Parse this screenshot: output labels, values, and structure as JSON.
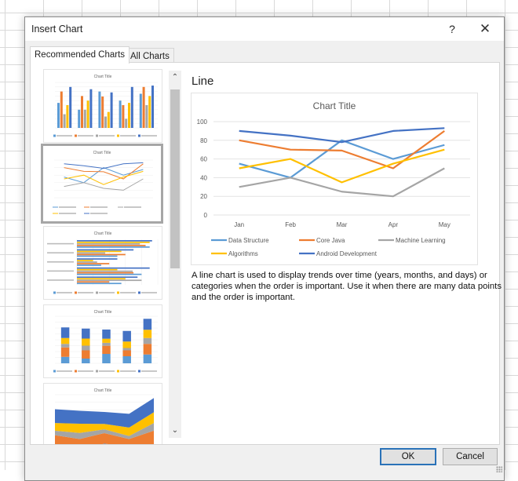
{
  "dialog": {
    "title": "Insert Chart",
    "help_label": "?",
    "close_label": "✕",
    "tabs": [
      {
        "label": "Recommended Charts",
        "active": true
      },
      {
        "label": "All Charts",
        "active": false
      }
    ],
    "thumbnails": [
      {
        "type": "clustered-column",
        "title": "Chart Title"
      },
      {
        "type": "line",
        "title": "Chart Title",
        "selected": true
      },
      {
        "type": "clustered-bar",
        "title": "Chart Title"
      },
      {
        "type": "stacked-column",
        "title": "Chart Title"
      },
      {
        "type": "stacked-area",
        "title": "Chart Title"
      }
    ],
    "scroll_up_icon": "⌃",
    "scroll_down_icon": "⌄",
    "preview": {
      "heading": "Line",
      "description": "A line chart is used to display trends over time (years, months, and days) or categories when the order is important. Use it when there are many data points and the order is important."
    },
    "buttons": {
      "ok": "OK",
      "cancel": "Cancel"
    }
  },
  "colors": {
    "Data Structure": "#5b9bd5",
    "Core Java": "#ed7d31",
    "Machine Learning": "#a5a5a5",
    "Algorithms": "#ffc000",
    "Android Development": "#4472c4",
    "ok_border": "#2a72b8"
  },
  "chart_data": {
    "type": "line",
    "title": "Chart Title",
    "categories": [
      "Jan",
      "Feb",
      "Mar",
      "Apr",
      "May"
    ],
    "series": [
      {
        "name": "Data Structure",
        "values": [
          55,
          40,
          80,
          60,
          75
        ]
      },
      {
        "name": "Core Java",
        "values": [
          80,
          70,
          69,
          50,
          90
        ]
      },
      {
        "name": "Machine Learning",
        "values": [
          30,
          40,
          25,
          20,
          50
        ]
      },
      {
        "name": "Algorithms",
        "values": [
          50,
          60,
          35,
          55,
          70
        ]
      },
      {
        "name": "Android Development",
        "values": [
          90,
          85,
          78,
          90,
          93
        ]
      }
    ],
    "xlabel": "",
    "ylabel": "",
    "ylim": [
      0,
      100
    ],
    "yticks": [
      0,
      20,
      40,
      60,
      80,
      100
    ],
    "grid": true,
    "legend_position": "bottom"
  }
}
